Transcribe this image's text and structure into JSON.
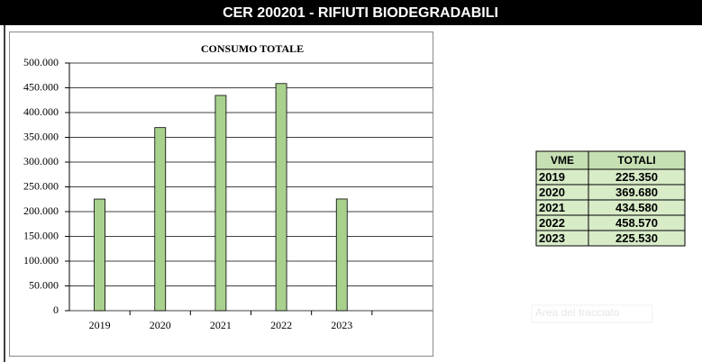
{
  "header": {
    "title": "CER 200201 - RIFIUTI BIODEGRADABILI"
  },
  "chart_data": {
    "type": "bar",
    "title": "CONSUMO TOTALE",
    "categories": [
      "2019",
      "2020",
      "2021",
      "2022",
      "2023",
      null
    ],
    "values": [
      225350,
      369680,
      434580,
      458570,
      225530,
      null
    ],
    "color": "#a9d18e",
    "ylim": [
      0,
      500000
    ],
    "yticks": [
      0,
      {
        "value": 50000,
        "label": "50.000"
      },
      {
        "value": 100000,
        "label": "100.000"
      },
      {
        "value": 150000,
        "label": "150.000"
      },
      {
        "value": 200000,
        "label": "200.000"
      },
      {
        "value": 250000,
        "label": "250.000"
      },
      {
        "value": 300000,
        "label": "300.000"
      },
      {
        "value": 350000,
        "label": "350.000"
      },
      {
        "value": 400000,
        "label": "400.000"
      },
      {
        "value": 450000,
        "label": "450.000"
      },
      {
        "value": 500000,
        "label": "500.000"
      }
    ],
    "grid": true
  },
  "table": {
    "columns": [
      "VME",
      "TOTALI"
    ],
    "rows": [
      [
        "2019",
        "225.350"
      ],
      [
        "2020",
        "369.680"
      ],
      [
        "2021",
        "434.580"
      ],
      [
        "2022",
        "458.570"
      ],
      [
        "2023",
        "225.530"
      ]
    ]
  },
  "tooltip": "Area del tracciato"
}
